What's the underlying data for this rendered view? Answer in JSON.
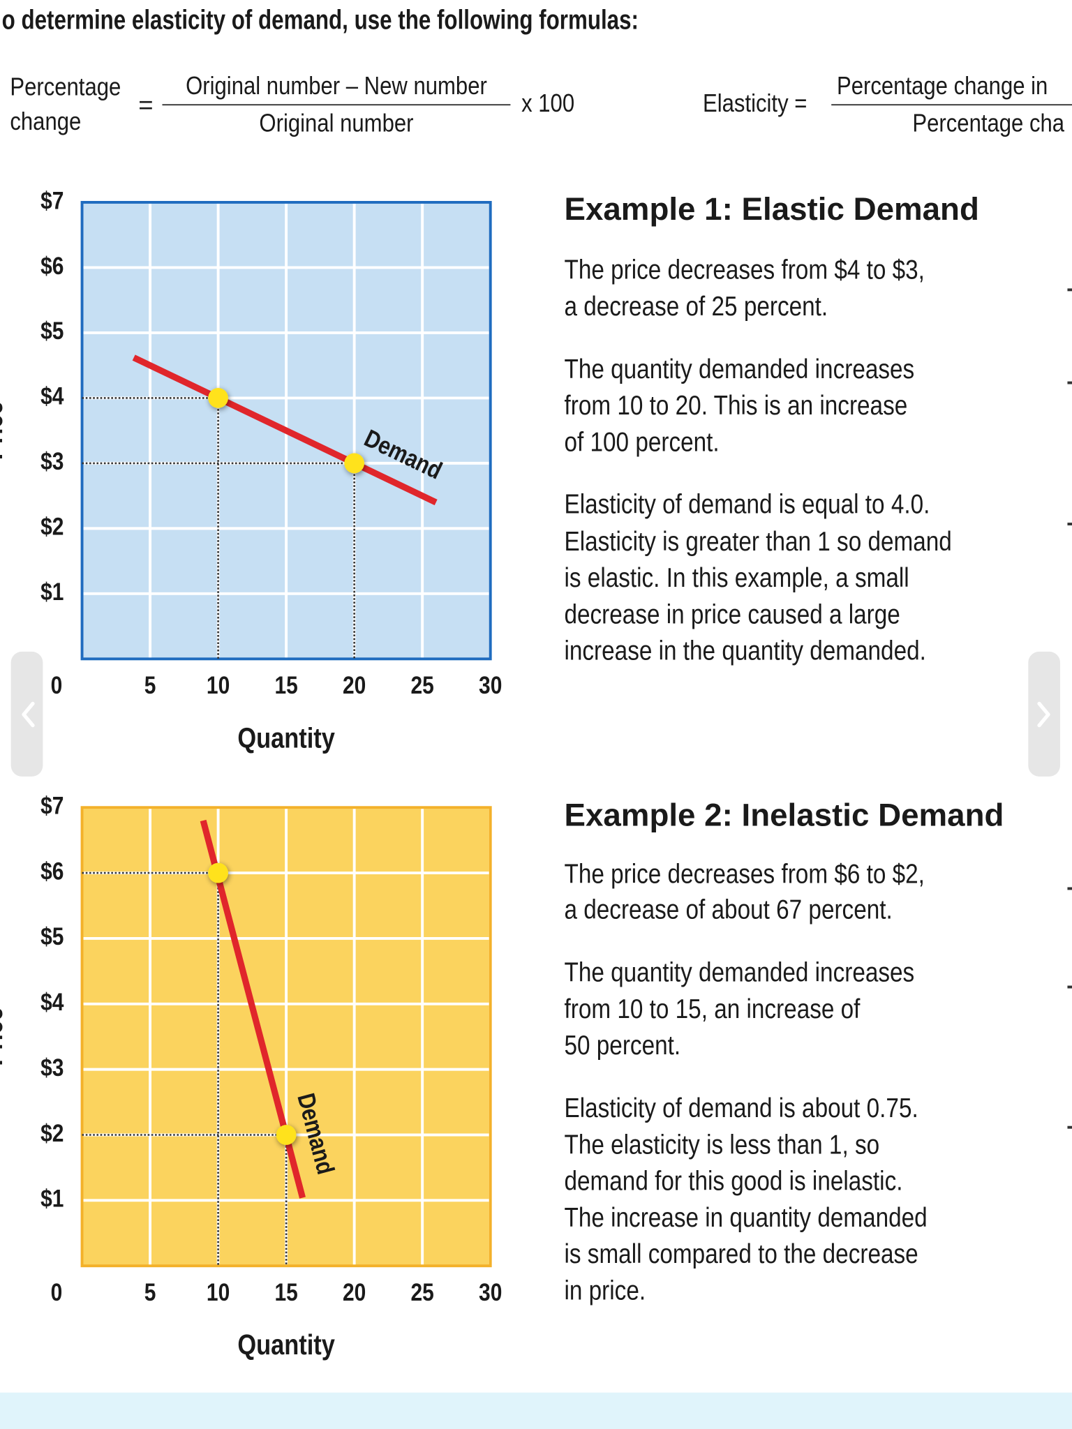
{
  "header": {
    "title": "o determine elasticity of demand, use the following formulas:"
  },
  "formulas": {
    "percentage_change": {
      "label_line1": "Percentage",
      "label_line2": "change",
      "equals": "=",
      "numerator": "Original number – New number",
      "denominator": "Original number",
      "multiplier": "x 100"
    },
    "elasticity": {
      "label": "Elasticity =",
      "numerator": "Percentage change in",
      "denominator": "Percentage cha"
    }
  },
  "chart_data": [
    {
      "type": "line",
      "xlabel": "Quantity",
      "ylabel": "Price",
      "xlim": [
        0,
        30
      ],
      "xticks": [
        0,
        5,
        10,
        15,
        20,
        25,
        30
      ],
      "ylim": [
        0,
        7
      ],
      "yticks": [
        {
          "value": 1,
          "label": "$1"
        },
        {
          "value": 2,
          "label": "$2"
        },
        {
          "value": 3,
          "label": "$3"
        },
        {
          "value": 4,
          "label": "$4"
        },
        {
          "value": 5,
          "label": "$5"
        },
        {
          "value": 6,
          "label": "$6"
        },
        {
          "value": 7,
          "label": "$7"
        }
      ],
      "grid": true,
      "background": "#c6dff3",
      "border": "#1f6cbf",
      "series": [
        {
          "name": "Demand",
          "color": "#e0262b",
          "x": [
            3.8,
            26
          ],
          "values": [
            4.62,
            2.4
          ]
        }
      ],
      "points": {
        "x": [
          10,
          20
        ],
        "values": [
          4,
          3
        ],
        "color": "#ffe21a"
      }
    },
    {
      "type": "line",
      "xlabel": "Quantity",
      "ylabel": "Price",
      "xlim": [
        0,
        30
      ],
      "xticks": [
        0,
        5,
        10,
        15,
        20,
        25,
        30
      ],
      "ylim": [
        0,
        7
      ],
      "yticks": [
        {
          "value": 1,
          "label": "$1"
        },
        {
          "value": 2,
          "label": "$2"
        },
        {
          "value": 3,
          "label": "$3"
        },
        {
          "value": 4,
          "label": "$4"
        },
        {
          "value": 5,
          "label": "$5"
        },
        {
          "value": 6,
          "label": "$6"
        },
        {
          "value": 7,
          "label": "$7"
        }
      ],
      "grid": true,
      "background": "#fbd35e",
      "border": "#f3b12a",
      "series": [
        {
          "name": "Demand",
          "color": "#e0262b",
          "x": [
            8.9,
            16.2
          ],
          "values": [
            6.8,
            1.04
          ]
        }
      ],
      "points": {
        "x": [
          10,
          15
        ],
        "values": [
          6,
          2
        ],
        "color": "#ffe21a"
      }
    }
  ],
  "examples": [
    {
      "title": "Example 1: Elastic Demand",
      "paragraphs": [
        [
          "The price decreases from $4 to $3,",
          "a decrease of 25 percent."
        ],
        [
          "The quantity demanded increases",
          "from 10 to 20. This is an increase",
          "of 100 percent."
        ],
        [
          "Elasticity of demand is equal to 4.0.",
          "Elasticity is greater than 1 so demand",
          "is elastic. In this example, a small",
          "decrease in price caused a large",
          "increase in the quantity demanded."
        ]
      ]
    },
    {
      "title": "Example 2: Inelastic Demand",
      "paragraphs": [
        [
          "The price decreases from $6 to $2,",
          "a decrease of about 67 percent."
        ],
        [
          "The quantity demanded increases",
          "from 10 to 15, an increase of",
          "50 percent."
        ],
        [
          "Elasticity of demand is about 0.75.",
          "The elasticity is less than 1, so",
          "demand for this good is inelastic.",
          "The increase in quantity demanded",
          "is small compared to the decrease",
          "in price."
        ]
      ]
    }
  ]
}
